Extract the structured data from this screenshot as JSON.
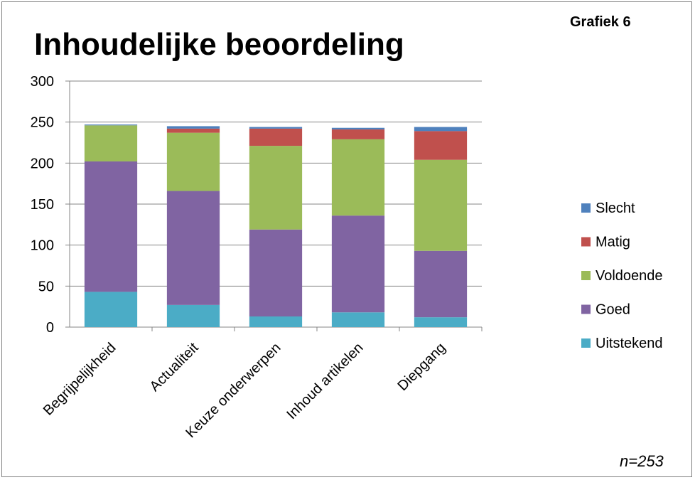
{
  "header": {
    "title": "Inhoudelijke beoordeling",
    "tag": "Grafiek 6",
    "note": "n=253"
  },
  "chart_data": {
    "type": "bar",
    "stacked": true,
    "title": "Inhoudelijke beoordeling",
    "categories": [
      "Begrijpelijkheid",
      "Actualiteit",
      "Keuze onderwerpen",
      "Inhoud artikelen",
      "Diepgang"
    ],
    "series": [
      {
        "name": "Uitstekend",
        "color": "#4bacc6",
        "values": [
          43,
          27,
          13,
          18,
          12
        ]
      },
      {
        "name": "Goed",
        "color": "#8064a2",
        "values": [
          159,
          139,
          106,
          118,
          81
        ]
      },
      {
        "name": "Voldoende",
        "color": "#9bbb59",
        "values": [
          44,
          71,
          102,
          93,
          111
        ]
      },
      {
        "name": "Matig",
        "color": "#c0504d",
        "values": [
          0,
          5,
          21,
          12,
          35
        ]
      },
      {
        "name": "Slecht",
        "color": "#4f81bd",
        "values": [
          1,
          3,
          2,
          2,
          5
        ]
      }
    ],
    "ylim": [
      0,
      300
    ],
    "yticks": [
      0,
      50,
      100,
      150,
      200,
      250,
      300
    ],
    "grid": true,
    "legend_position": "right"
  }
}
